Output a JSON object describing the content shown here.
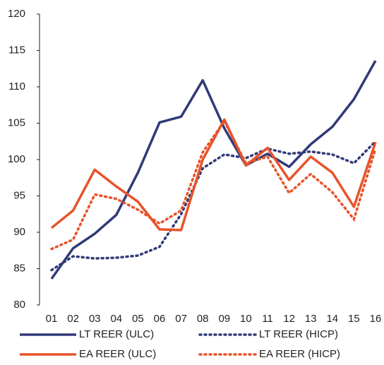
{
  "chart_data": {
    "type": "line",
    "categories": [
      "01",
      "02",
      "03",
      "04",
      "05",
      "06",
      "07",
      "08",
      "09",
      "10",
      "11",
      "12",
      "13",
      "14",
      "15",
      "16"
    ],
    "series": [
      {
        "name": "LT REER (ULC)",
        "color": "#313a78",
        "style": "solid",
        "values": [
          83.6,
          87.8,
          89.8,
          92.4,
          98.2,
          105.1,
          105.9,
          110.9,
          104.3,
          99.2,
          100.8,
          99.0,
          102.1,
          104.5,
          108.3,
          113.6
        ]
      },
      {
        "name": "LT REER (HICP)",
        "color": "#313a78",
        "style": "dotted",
        "values": [
          84.8,
          86.7,
          86.4,
          86.5,
          86.8,
          88.0,
          92.5,
          98.8,
          100.7,
          100.2,
          101.5,
          100.8,
          101.1,
          100.7,
          99.5,
          102.5
        ]
      },
      {
        "name": "EA REER (ULC)",
        "color": "#e8532a",
        "style": "solid",
        "values": [
          90.6,
          93.0,
          98.6,
          96.3,
          94.2,
          90.4,
          90.3,
          100.0,
          105.5,
          99.2,
          101.6,
          97.2,
          100.4,
          98.2,
          93.5,
          102.4
        ]
      },
      {
        "name": "EA REER (HICP)",
        "color": "#e8532a",
        "style": "dotted",
        "values": [
          87.7,
          89.0,
          95.2,
          94.6,
          93.1,
          91.2,
          93.0,
          101.0,
          105.3,
          99.5,
          100.4,
          95.4,
          98.0,
          95.5,
          91.8,
          101.5
        ]
      }
    ],
    "ylim": [
      80,
      120
    ],
    "yticks": [
      80,
      85,
      90,
      95,
      100,
      105,
      110,
      115,
      120
    ],
    "grid": false,
    "legend": "bottom"
  }
}
